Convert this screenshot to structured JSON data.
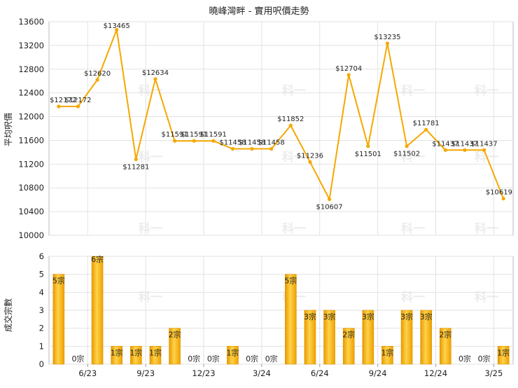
{
  "chart_data": [
    {
      "type": "line",
      "title": "曉峰灣畔 - 實用呎價走勢",
      "ylabel": "平均呎價",
      "ylim": [
        10000,
        13600
      ],
      "yticks": [
        10000,
        10400,
        10800,
        11200,
        11600,
        12000,
        12400,
        12800,
        13200,
        13600
      ],
      "grid": true,
      "color": "#F5A800",
      "watermark": "科一",
      "points": [
        {
          "x": 0,
          "value": 12172,
          "label": "$12172"
        },
        {
          "x": 1,
          "value": 12172,
          "label": "$12172"
        },
        {
          "x": 2,
          "value": 12620,
          "label": "$12620"
        },
        {
          "x": 3,
          "value": 13465,
          "label": "$13465"
        },
        {
          "x": 4,
          "value": 11281,
          "label": "$11281"
        },
        {
          "x": 5,
          "value": 12634,
          "label": "$12634"
        },
        {
          "x": 6,
          "value": 11591,
          "label": "$11591"
        },
        {
          "x": 7,
          "value": 11591,
          "label": "$11591"
        },
        {
          "x": 8,
          "value": 11591,
          "label": "$11591"
        },
        {
          "x": 9,
          "value": 11458,
          "label": "$11458"
        },
        {
          "x": 10,
          "value": 11458,
          "label": "$11458"
        },
        {
          "x": 11,
          "value": 11458,
          "label": "$11458"
        },
        {
          "x": 12,
          "value": 11852,
          "label": "$11852"
        },
        {
          "x": 13,
          "value": 11236,
          "label": "$11236"
        },
        {
          "x": 14,
          "value": 10607,
          "label": "$10607"
        },
        {
          "x": 15,
          "value": 12704,
          "label": "$12704"
        },
        {
          "x": 16,
          "value": 11501,
          "label": "$11501"
        },
        {
          "x": 17,
          "value": 13235,
          "label": "$13235"
        },
        {
          "x": 18,
          "value": 11502,
          "label": "$11502"
        },
        {
          "x": 19,
          "value": 11781,
          "label": "$11781"
        },
        {
          "x": 20,
          "value": 11437,
          "label": "$11437"
        },
        {
          "x": 21,
          "value": 11437,
          "label": "$11437"
        },
        {
          "x": 22,
          "value": 11437,
          "label": "$11437"
        },
        {
          "x": 23,
          "value": 10619,
          "label": "$10619"
        }
      ]
    },
    {
      "type": "bar",
      "ylabel": "成交宗數",
      "ylim": [
        0,
        6
      ],
      "yticks": [
        0,
        1,
        2,
        3,
        4,
        5,
        6
      ],
      "grid": true,
      "color": "#F5A800",
      "unit_suffix": "宗",
      "values": [
        5,
        0,
        6,
        1,
        1,
        1,
        2,
        0,
        0,
        1,
        0,
        0,
        5,
        3,
        3,
        2,
        3,
        1,
        3,
        3,
        2,
        0,
        0,
        1
      ],
      "x_tick_labels": [
        {
          "after_index": 1,
          "label": "6/23"
        },
        {
          "after_index": 4,
          "label": "9/23"
        },
        {
          "after_index": 7,
          "label": "12/23"
        },
        {
          "after_index": 10,
          "label": "3/24"
        },
        {
          "after_index": 13,
          "label": "6/24"
        },
        {
          "after_index": 16,
          "label": "9/24"
        },
        {
          "after_index": 19,
          "label": "12/24"
        },
        {
          "after_index": 22,
          "label": "3/25"
        }
      ]
    }
  ]
}
